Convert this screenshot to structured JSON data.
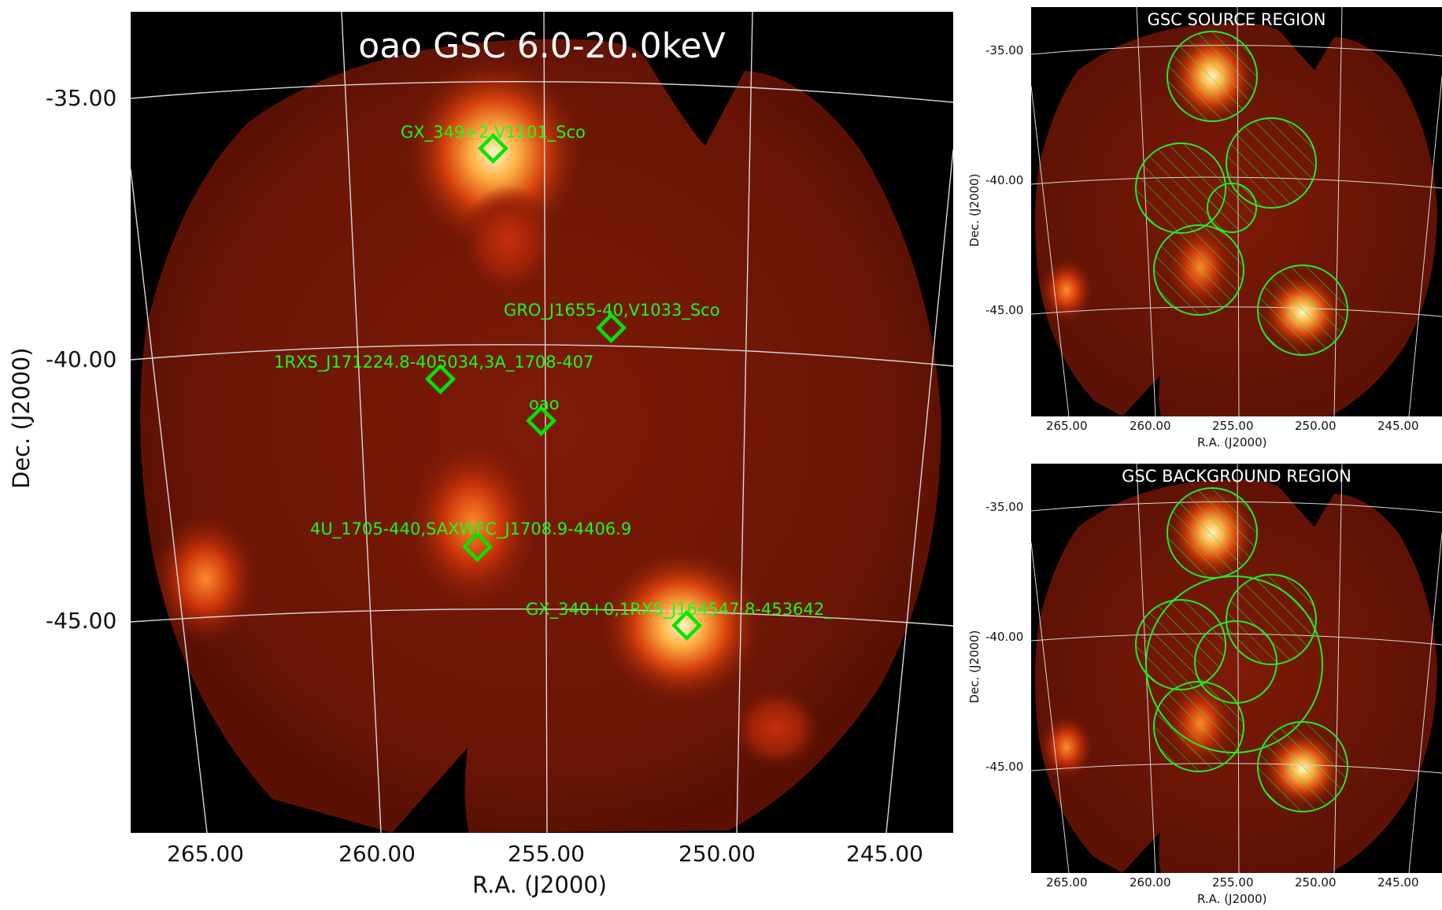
{
  "main_panel": {
    "title": "oao GSC 6.0-20.0keV",
    "xlabel": "R.A. (J2000)",
    "ylabel": "Dec. (J2000)",
    "x_ticks": [
      "265.00",
      "260.00",
      "255.00",
      "250.00",
      "245.00"
    ],
    "y_ticks": [
      "-35.00",
      "-40.00",
      "-45.00"
    ],
    "sources": [
      {
        "label": "GX_349+2,V1101_Sco",
        "ra": 256.4,
        "dec": -36.4
      },
      {
        "label": "GRO_J1655-40,V1033_Sco",
        "ra": 253.5,
        "dec": -39.8
      },
      {
        "label": "1RXS_J171224.8-405034,3A_1708-407",
        "ra": 258.1,
        "dec": -40.8
      },
      {
        "label": "oao",
        "ra": 255.0,
        "dec": -41.9
      },
      {
        "label": "4U_1705-440,SAXWFC_J1708.9-4406.9",
        "ra": 257.1,
        "dec": -44.2
      },
      {
        "label": "GX_340+0,1RXS_J164547.8-453642_",
        "ra": 251.3,
        "dec": -45.5
      }
    ],
    "marker_color": "#00e600"
  },
  "source_panel": {
    "title": "GSC SOURCE REGION",
    "xlabel": "R.A. (J2000)",
    "ylabel": "Dec. (J2000)",
    "x_ticks": [
      "265.00",
      "260.00",
      "255.00",
      "250.00",
      "245.00"
    ],
    "y_ticks": [
      "-35.00",
      "-40.00",
      "-45.00"
    ]
  },
  "background_panel": {
    "title": "GSC BACKGROUND REGION",
    "xlabel": "R.A. (J2000)",
    "ylabel": "Dec. (J2000)",
    "x_ticks": [
      "265.00",
      "260.00",
      "255.00",
      "250.00",
      "245.00"
    ],
    "y_ticks": [
      "-35.00",
      "-40.00",
      "-45.00"
    ]
  },
  "colors": {
    "image_background": "#000000",
    "diffuse_emission": "#6e1405",
    "bright_core": "#fff2b0",
    "grid_lines": "#cfcfcf",
    "region_outline": "#22ee22"
  }
}
